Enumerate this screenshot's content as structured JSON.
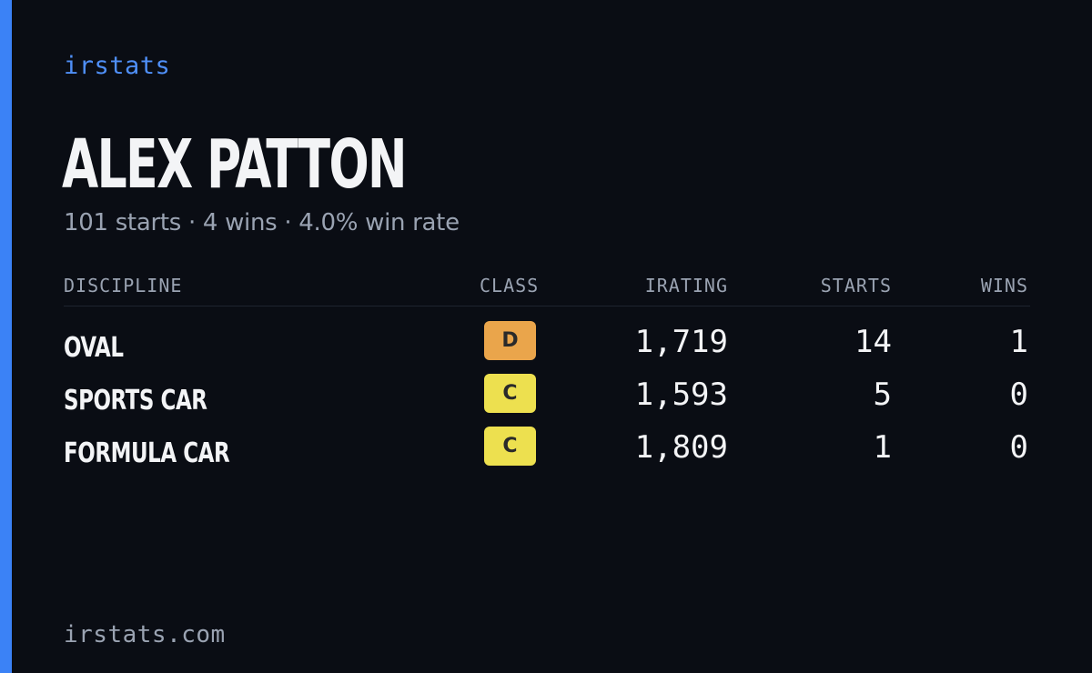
{
  "brand": "irstats",
  "driver": {
    "name": "ALEX PATTON",
    "summary": "101 starts · 4 wins · 4.0% win rate"
  },
  "table": {
    "headers": {
      "discipline": "DISCIPLINE",
      "class": "CLASS",
      "irating": "IRATING",
      "starts": "STARTS",
      "wins": "WINS"
    },
    "rows": [
      {
        "discipline": "OVAL",
        "class": "D",
        "class_color": "#eaa54b",
        "irating": "1,719",
        "starts": "14",
        "wins": "1"
      },
      {
        "discipline": "SPORTS CAR",
        "class": "C",
        "class_color": "#ede04f",
        "irating": "1,593",
        "starts": "5",
        "wins": "0"
      },
      {
        "discipline": "FORMULA CAR",
        "class": "C",
        "class_color": "#ede04f",
        "irating": "1,809",
        "starts": "1",
        "wins": "0"
      }
    ]
  },
  "footer": "irstats.com",
  "colors": {
    "background": "#0a0d14",
    "accent": "#3b82f6"
  }
}
